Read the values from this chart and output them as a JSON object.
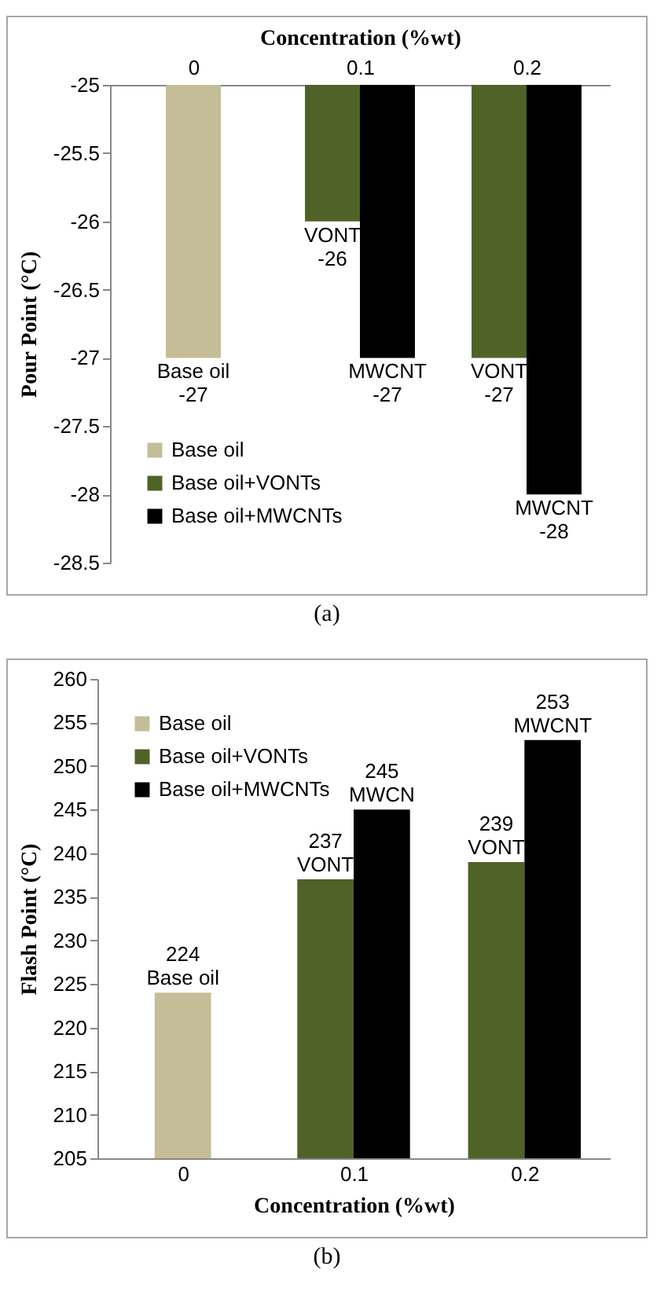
{
  "chart_data": [
    {
      "type": "bar",
      "x2label": "Concentration (%wt)",
      "ylabel": "Pour Point (°C)",
      "categories": [
        "0",
        "0.1",
        "0.2"
      ],
      "ylim": [
        -28.5,
        -25
      ],
      "yticks": [
        -28.5,
        -28,
        -27.5,
        -27,
        -26.5,
        -26,
        -25.5,
        -25
      ],
      "legend": "bottom left",
      "grid": false,
      "series": [
        {
          "name": "Base oil",
          "color": "#c4bd97",
          "values": [
            -27,
            null,
            null
          ],
          "value_labels": [
            "Base oil\n-27",
            null,
            null
          ]
        },
        {
          "name": "Base oil+VONTs",
          "color": "#4f6228",
          "values": [
            null,
            -26,
            -27
          ],
          "value_labels": [
            null,
            "VONT\n-26",
            "VONT\n-27"
          ]
        },
        {
          "name": "Base oil+MWCNTs",
          "color": "#000000",
          "values": [
            null,
            -27,
            -28
          ],
          "value_labels": [
            null,
            "MWCNT\n-27",
            "MWCNT\n-28"
          ]
        }
      ],
      "annotations": [
        "(a)"
      ]
    },
    {
      "type": "bar",
      "xlabel": "Concentration (%wt)",
      "ylabel": "Flash Point (°C)",
      "categories": [
        "0",
        "0.1",
        "0.2"
      ],
      "ylim": [
        205,
        260
      ],
      "yticks": [
        205,
        210,
        215,
        220,
        225,
        230,
        235,
        240,
        245,
        250,
        255,
        260
      ],
      "legend": "top left",
      "grid": false,
      "series": [
        {
          "name": "Base oil",
          "color": "#c4bd97",
          "values": [
            224,
            null,
            null
          ],
          "value_labels": [
            "224\nBase oil",
            null,
            null
          ]
        },
        {
          "name": "Base oil+VONTs",
          "color": "#4f6228",
          "values": [
            null,
            237,
            239
          ],
          "value_labels": [
            null,
            "237\nVONT",
            "239\nVONT"
          ]
        },
        {
          "name": "Base oil+MWCNTs",
          "color": "#000000",
          "values": [
            null,
            245,
            253
          ],
          "value_labels": [
            null,
            "245\nMWCN",
            "253\nMWCNT"
          ]
        }
      ],
      "annotations": [
        "(b)"
      ]
    }
  ]
}
